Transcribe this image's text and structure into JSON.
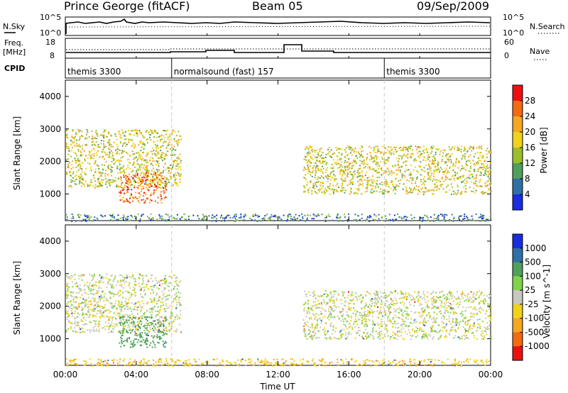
{
  "header": {
    "station": "Prince George (fitACF)",
    "beam": "Beam 05",
    "date": "09/Sep/2009"
  },
  "strip_labels": {
    "nsky": "N.Sky",
    "freq_line1": "Freq.",
    "freq_line2": "[MHz]",
    "cpid": "CPID",
    "nsearch": "N.Search",
    "nave": "Nave"
  },
  "strip_ticks": {
    "sky_left": [
      "10^5",
      "10^0"
    ],
    "sky_right": [
      "10^5",
      "10^0"
    ],
    "freq_left": [
      "18",
      "8"
    ],
    "nave_right": [
      "60",
      "0"
    ]
  },
  "cpid_segments": [
    {
      "label": "themis 3300",
      "start_h": 0
    },
    {
      "label": "normalsound (fast) 157",
      "start_h": 6
    },
    {
      "label": "themis 3300",
      "start_h": 18
    }
  ],
  "power_colorbar": {
    "label": "Power [dB]",
    "ticks": [
      "28",
      "24",
      "20",
      "16",
      "12",
      "8",
      "4"
    ],
    "colors": [
      "#ee1010",
      "#f46a10",
      "#f5a623",
      "#f1d21a",
      "#9bbf2a",
      "#4ea05a",
      "#2f6fa8",
      "#1a2ce0"
    ]
  },
  "velocity_colorbar": {
    "label": "Velocity [m s^-1]",
    "ticks": [
      "1000",
      "500",
      "100",
      "25",
      "-25",
      "-100",
      "-500",
      "-1000"
    ],
    "colors": [
      "#1a2ce0",
      "#2f6fa8",
      "#4ea05a",
      "#7fd24a",
      "#c8c8c0",
      "#f1d21a",
      "#f5a623",
      "#f46a10",
      "#ee1010"
    ]
  },
  "axes": {
    "ylabel": "Slant Range [km]",
    "xlabel": "Time UT",
    "yticks": [
      "4000",
      "3000",
      "2000",
      "1000"
    ],
    "xticks": [
      "00:00",
      "04:00",
      "08:00",
      "12:00",
      "16:00",
      "20:00",
      "00:00"
    ]
  },
  "chart_data": {
    "type": "heatmap",
    "title": "Prince George (fitACF)",
    "xlabel": "Time UT",
    "ylabel": "Slant Range [km]",
    "x_range_hours": [
      0,
      24
    ],
    "ylim": [
      180,
      4500
    ],
    "cpid_change_hours": [
      6,
      18
    ],
    "panels": [
      {
        "name": "Power [dB]",
        "colorbar_range": [
          0,
          30
        ],
        "echo_regions": [
          {
            "t_start_h": 0,
            "t_end_h": 6.5,
            "range_km": [
              1200,
              3000
            ],
            "value": 16
          },
          {
            "t_start_h": 3.0,
            "t_end_h": 5.7,
            "range_km": [
              750,
              1700
            ],
            "value": 24
          },
          {
            "t_start_h": 13.4,
            "t_end_h": 24,
            "range_km": [
              1000,
              2500
            ],
            "value": 16
          },
          {
            "t_start_h": 0,
            "t_end_h": 24,
            "range_km": [
              180,
              400
            ],
            "value": 6
          }
        ]
      },
      {
        "name": "Velocity [m s^-1]",
        "colorbar_range": [
          -1000,
          1000
        ],
        "echo_regions": [
          {
            "t_start_h": 0,
            "t_end_h": 6.5,
            "range_km": [
              1200,
              3000
            ],
            "value": 0
          },
          {
            "t_start_h": 3.0,
            "t_end_h": 5.7,
            "range_km": [
              750,
              1700
            ],
            "value": 100
          },
          {
            "t_start_h": 13.4,
            "t_end_h": 24,
            "range_km": [
              1000,
              2500
            ],
            "value": 0
          },
          {
            "t_start_h": 0,
            "t_end_h": 24,
            "range_km": [
              180,
              400
            ],
            "value": -50
          }
        ]
      }
    ]
  }
}
